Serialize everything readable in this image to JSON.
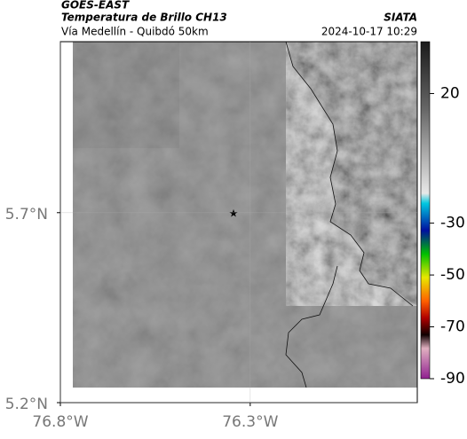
{
  "header": {
    "satellite": "GOES-EAST",
    "product": "Temperatura de Brillo CH13",
    "source": "SIATA",
    "region": "Vía Medellín - Quibdó 50km",
    "datetime": "2024-10-17 10:29"
  },
  "map": {
    "lonlim": [
      -76.8,
      -75.86
    ],
    "latlim": [
      5.2,
      6.15
    ],
    "lon_ticks": [
      {
        "value": -76.8,
        "label": "76.8°W"
      },
      {
        "value": -76.3,
        "label": "76.3°W"
      }
    ],
    "lat_ticks": [
      {
        "value": 5.7,
        "label": "5.7°N"
      },
      {
        "value": 5.2,
        "label": "5.2°N"
      }
    ]
  },
  "colorbar": {
    "clim": [
      40,
      -90
    ],
    "ticks": [
      20,
      -30,
      -50,
      -70,
      -90
    ]
  }
}
